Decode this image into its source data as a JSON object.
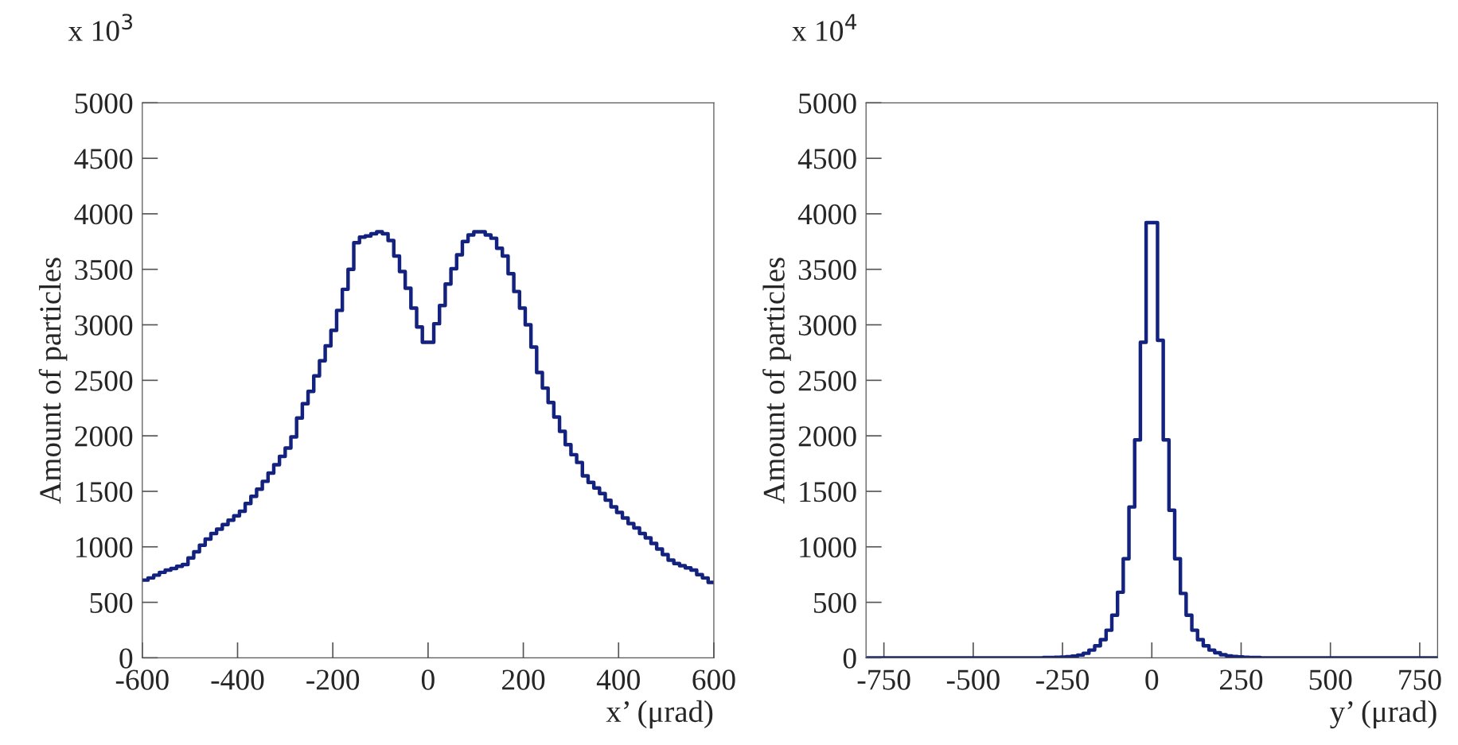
{
  "chart_data": [
    {
      "type": "histogram",
      "xlabel": "x’ (μrad)",
      "ylabel": "Amount of particles",
      "annotations": [
        "x 10$^{3}$"
      ],
      "grid": false,
      "line_style": "solid",
      "color": "#14227f",
      "bins": [
        -600,
        -588,
        -576,
        -564,
        -552,
        -540,
        -528,
        -516,
        -504,
        -492,
        -480,
        -468,
        -456,
        -444,
        -432,
        -420,
        -408,
        -396,
        -384,
        -372,
        -360,
        -348,
        -336,
        -324,
        -312,
        -300,
        -288,
        -276,
        -264,
        -252,
        -240,
        -228,
        -216,
        -204,
        -192,
        -180,
        -168,
        -156,
        -144,
        -132,
        -120,
        -108,
        -96,
        -84,
        -72,
        -60,
        -48,
        -36,
        -24,
        -12,
        0,
        12,
        24,
        36,
        48,
        60,
        72,
        84,
        96,
        108,
        120,
        132,
        144,
        156,
        168,
        180,
        192,
        204,
        216,
        228,
        240,
        252,
        264,
        276,
        288,
        300,
        312,
        324,
        336,
        348,
        360,
        372,
        384,
        396,
        408,
        420,
        432,
        444,
        456,
        468,
        480,
        492,
        504,
        516,
        528,
        540,
        552,
        564,
        576,
        588,
        600
      ],
      "values": [
        700,
        720,
        745,
        770,
        790,
        805,
        825,
        840,
        900,
        955,
        1015,
        1070,
        1120,
        1160,
        1200,
        1240,
        1280,
        1320,
        1390,
        1455,
        1520,
        1590,
        1665,
        1740,
        1815,
        1890,
        1990,
        2160,
        2290,
        2400,
        2540,
        2676,
        2810,
        2950,
        3130,
        3320,
        3500,
        3740,
        3790,
        3800,
        3820,
        3838,
        3820,
        3760,
        3620,
        3480,
        3330,
        3150,
        2980,
        2842,
        2842,
        3010,
        3174,
        3367,
        3505,
        3630,
        3750,
        3810,
        3838,
        3838,
        3810,
        3780,
        3690,
        3620,
        3460,
        3300,
        3150,
        3000,
        2800,
        2570,
        2430,
        2300,
        2170,
        2040,
        1920,
        1830,
        1760,
        1640,
        1580,
        1530,
        1480,
        1420,
        1360,
        1310,
        1260,
        1210,
        1170,
        1120,
        1080,
        1030,
        980,
        930,
        880,
        850,
        830,
        810,
        790,
        750,
        720,
        680
      ],
      "xlim": [
        -600,
        600
      ],
      "xticks": [
        -600,
        -400,
        -200,
        0,
        200,
        400,
        600
      ],
      "ylim": [
        0,
        5000
      ],
      "yticks": [
        0,
        500,
        1000,
        1500,
        2000,
        2500,
        3000,
        3500,
        4000,
        4500,
        5000
      ]
    },
    {
      "type": "histogram",
      "xlabel": "y’ (μrad)",
      "ylabel": "Amount of particles",
      "annotations": [
        "x 10$^{4}$"
      ],
      "grid": false,
      "line_style": "solid",
      "color": "#14227f",
      "bins": [
        -800,
        -784,
        -768,
        -752,
        -736,
        -720,
        -704,
        -688,
        -672,
        -656,
        -640,
        -624,
        -608,
        -592,
        -576,
        -560,
        -544,
        -528,
        -512,
        -496,
        -480,
        -464,
        -448,
        -432,
        -416,
        -400,
        -384,
        -368,
        -352,
        -336,
        -320,
        -304,
        -288,
        -272,
        -256,
        -240,
        -224,
        -208,
        -192,
        -176,
        -160,
        -144,
        -128,
        -112,
        -96,
        -80,
        -64,
        -48,
        -32,
        -16,
        0,
        16,
        32,
        48,
        64,
        80,
        96,
        112,
        128,
        144,
        160,
        176,
        192,
        208,
        224,
        240,
        256,
        272,
        288,
        304,
        320,
        336,
        352,
        368,
        384,
        400,
        416,
        432,
        448,
        464,
        480,
        496,
        512,
        528,
        544,
        560,
        576,
        592,
        608,
        624,
        640,
        656,
        672,
        688,
        704,
        720,
        736,
        752,
        768,
        784,
        800
      ],
      "values": [
        0,
        0,
        0,
        0,
        0,
        0,
        0,
        0,
        0,
        0,
        0,
        0,
        0,
        0,
        0,
        0,
        0,
        0,
        0,
        0,
        0,
        0,
        0,
        0,
        0,
        0,
        0,
        0,
        0,
        0,
        0,
        2,
        3,
        4,
        6,
        10,
        15,
        25,
        41,
        70,
        109,
        164,
        249,
        384,
        591,
        893,
        1359,
        1964,
        2843,
        3920,
        3920,
        2860,
        1964,
        1330,
        893,
        580,
        384,
        249,
        164,
        109,
        70,
        45,
        28,
        18,
        12,
        8,
        5,
        3,
        2,
        0,
        0,
        0,
        0,
        0,
        0,
        0,
        0,
        0,
        0,
        0,
        0,
        0,
        0,
        0,
        0,
        0,
        0,
        0,
        0,
        0,
        0,
        0,
        0,
        0,
        0,
        0,
        0,
        0,
        0,
        0
      ],
      "xlim": [
        -800,
        800
      ],
      "xticks": [
        -750,
        -500,
        -250,
        0,
        250,
        500,
        750
      ],
      "ylim": [
        0,
        5000
      ],
      "yticks": [
        0,
        500,
        1000,
        1500,
        2000,
        2500,
        3000,
        3500,
        4000,
        4500,
        5000
      ]
    }
  ]
}
